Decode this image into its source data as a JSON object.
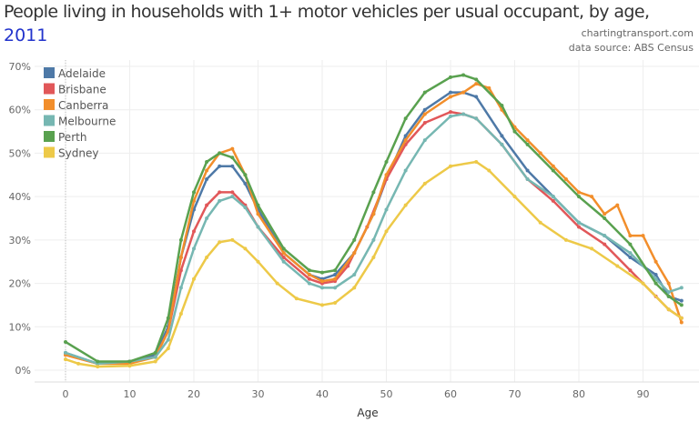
{
  "chart_data": {
    "type": "line",
    "title": "People living in households with 1+ motor vehicles per usual occupant, by age,",
    "title_year": "2011",
    "credit": "chartingtransport.com",
    "source": "data source: ABS Census",
    "xlabel": "Age",
    "ylabel": "",
    "xlim": [
      -4,
      98
    ],
    "ylim": [
      0,
      70
    ],
    "xticks": [
      0,
      10,
      20,
      30,
      40,
      50,
      60,
      70,
      80,
      90
    ],
    "yticks": [
      0,
      10,
      20,
      30,
      40,
      50,
      60,
      70
    ],
    "ytick_labels": [
      "0%",
      "10%",
      "20%",
      "30%",
      "40%",
      "50%",
      "60%",
      "70%"
    ],
    "grid": true,
    "legend": "top-left",
    "series": [
      {
        "name": "Adelaide",
        "color": "#4e79a7",
        "points": [
          [
            0,
            4
          ],
          [
            5,
            1.5
          ],
          [
            10,
            2
          ],
          [
            14,
            3.5
          ],
          [
            16,
            10
          ],
          [
            18,
            26
          ],
          [
            20,
            37
          ],
          [
            22,
            44
          ],
          [
            24,
            47
          ],
          [
            26,
            47
          ],
          [
            28,
            43
          ],
          [
            30,
            37
          ],
          [
            34,
            27
          ],
          [
            38,
            22
          ],
          [
            40,
            21
          ],
          [
            42,
            22
          ],
          [
            45,
            27
          ],
          [
            48,
            36
          ],
          [
            50,
            44
          ],
          [
            53,
            54
          ],
          [
            56,
            60
          ],
          [
            60,
            64
          ],
          [
            62,
            64
          ],
          [
            64,
            63
          ],
          [
            68,
            54
          ],
          [
            72,
            46
          ],
          [
            76,
            40
          ],
          [
            80,
            34
          ],
          [
            84,
            31
          ],
          [
            88,
            26
          ],
          [
            92,
            22
          ],
          [
            94,
            17
          ],
          [
            96,
            16
          ]
        ]
      },
      {
        "name": "Brisbane",
        "color": "#e15759",
        "points": [
          [
            0,
            3.5
          ],
          [
            5,
            1.5
          ],
          [
            10,
            2
          ],
          [
            14,
            3
          ],
          [
            16,
            9
          ],
          [
            18,
            23
          ],
          [
            20,
            32
          ],
          [
            22,
            38
          ],
          [
            24,
            41
          ],
          [
            26,
            41
          ],
          [
            28,
            38
          ],
          [
            30,
            33
          ],
          [
            34,
            26
          ],
          [
            38,
            21
          ],
          [
            40,
            20
          ],
          [
            42,
            20.5
          ],
          [
            44,
            24
          ],
          [
            47,
            33
          ],
          [
            50,
            44
          ],
          [
            53,
            52
          ],
          [
            56,
            57
          ],
          [
            60,
            59.5
          ],
          [
            62,
            59
          ],
          [
            64,
            58
          ],
          [
            68,
            52
          ],
          [
            72,
            44
          ],
          [
            76,
            39
          ],
          [
            80,
            33
          ],
          [
            84,
            29
          ],
          [
            88,
            23
          ],
          [
            92,
            17
          ],
          [
            94,
            14
          ],
          [
            96,
            12
          ]
        ]
      },
      {
        "name": "Canberra",
        "color": "#f28e2b",
        "points": [
          [
            0,
            3.5
          ],
          [
            5,
            1.5
          ],
          [
            10,
            1.5
          ],
          [
            14,
            3
          ],
          [
            16,
            9
          ],
          [
            18,
            26
          ],
          [
            20,
            39
          ],
          [
            22,
            46
          ],
          [
            24,
            50
          ],
          [
            26,
            51
          ],
          [
            28,
            45
          ],
          [
            30,
            36
          ],
          [
            34,
            27
          ],
          [
            38,
            22
          ],
          [
            40,
            20.5
          ],
          [
            42,
            21
          ],
          [
            45,
            27
          ],
          [
            48,
            36
          ],
          [
            50,
            45
          ],
          [
            53,
            53
          ],
          [
            56,
            59
          ],
          [
            60,
            63
          ],
          [
            62,
            64
          ],
          [
            64,
            66
          ],
          [
            66,
            65
          ],
          [
            68,
            60
          ],
          [
            70,
            56
          ],
          [
            72,
            53
          ],
          [
            74,
            50
          ],
          [
            76,
            47
          ],
          [
            78,
            44
          ],
          [
            80,
            41
          ],
          [
            82,
            40
          ],
          [
            84,
            36
          ],
          [
            86,
            38
          ],
          [
            88,
            31
          ],
          [
            90,
            31
          ],
          [
            92,
            25
          ],
          [
            94,
            20
          ],
          [
            96,
            11
          ]
        ]
      },
      {
        "name": "Melbourne",
        "color": "#76b7b2",
        "points": [
          [
            0,
            4
          ],
          [
            5,
            1.5
          ],
          [
            10,
            2
          ],
          [
            14,
            3
          ],
          [
            16,
            7
          ],
          [
            18,
            19
          ],
          [
            20,
            28
          ],
          [
            22,
            35
          ],
          [
            24,
            39
          ],
          [
            26,
            40
          ],
          [
            28,
            37.5
          ],
          [
            30,
            33
          ],
          [
            34,
            25
          ],
          [
            38,
            20
          ],
          [
            40,
            19
          ],
          [
            42,
            19
          ],
          [
            45,
            22
          ],
          [
            48,
            30
          ],
          [
            50,
            37
          ],
          [
            53,
            46
          ],
          [
            56,
            53
          ],
          [
            60,
            58.5
          ],
          [
            62,
            59
          ],
          [
            64,
            58
          ],
          [
            68,
            52
          ],
          [
            72,
            44
          ],
          [
            76,
            40
          ],
          [
            80,
            34
          ],
          [
            84,
            31
          ],
          [
            88,
            27
          ],
          [
            92,
            21
          ],
          [
            94,
            18
          ],
          [
            96,
            19
          ]
        ]
      },
      {
        "name": "Perth",
        "color": "#59a14f",
        "points": [
          [
            0,
            6.5
          ],
          [
            5,
            2
          ],
          [
            10,
            2
          ],
          [
            14,
            4
          ],
          [
            16,
            12
          ],
          [
            18,
            30
          ],
          [
            20,
            41
          ],
          [
            22,
            48
          ],
          [
            24,
            50
          ],
          [
            26,
            49
          ],
          [
            28,
            45
          ],
          [
            30,
            38
          ],
          [
            34,
            28
          ],
          [
            38,
            23
          ],
          [
            40,
            22.5
          ],
          [
            42,
            23
          ],
          [
            45,
            30
          ],
          [
            48,
            41
          ],
          [
            50,
            48
          ],
          [
            53,
            58
          ],
          [
            56,
            64
          ],
          [
            60,
            67.5
          ],
          [
            62,
            68
          ],
          [
            64,
            67
          ],
          [
            68,
            61
          ],
          [
            70,
            55
          ],
          [
            72,
            52
          ],
          [
            76,
            46
          ],
          [
            80,
            40
          ],
          [
            84,
            35
          ],
          [
            88,
            29
          ],
          [
            92,
            20
          ],
          [
            94,
            17
          ],
          [
            96,
            15
          ]
        ]
      },
      {
        "name": "Sydney",
        "color": "#edc948",
        "points": [
          [
            0,
            2.5
          ],
          [
            2,
            1.5
          ],
          [
            5,
            0.8
          ],
          [
            10,
            1
          ],
          [
            14,
            2
          ],
          [
            16,
            5
          ],
          [
            18,
            13
          ],
          [
            20,
            21
          ],
          [
            22,
            26
          ],
          [
            24,
            29.5
          ],
          [
            26,
            30
          ],
          [
            28,
            28
          ],
          [
            30,
            25
          ],
          [
            33,
            20
          ],
          [
            36,
            16.5
          ],
          [
            40,
            15
          ],
          [
            42,
            15.5
          ],
          [
            45,
            19
          ],
          [
            48,
            26
          ],
          [
            50,
            32
          ],
          [
            53,
            38
          ],
          [
            56,
            43
          ],
          [
            60,
            47
          ],
          [
            64,
            48
          ],
          [
            66,
            46
          ],
          [
            70,
            40
          ],
          [
            74,
            34
          ],
          [
            78,
            30
          ],
          [
            82,
            28
          ],
          [
            86,
            24
          ],
          [
            90,
            20
          ],
          [
            94,
            14
          ],
          [
            96,
            12
          ]
        ]
      }
    ]
  }
}
